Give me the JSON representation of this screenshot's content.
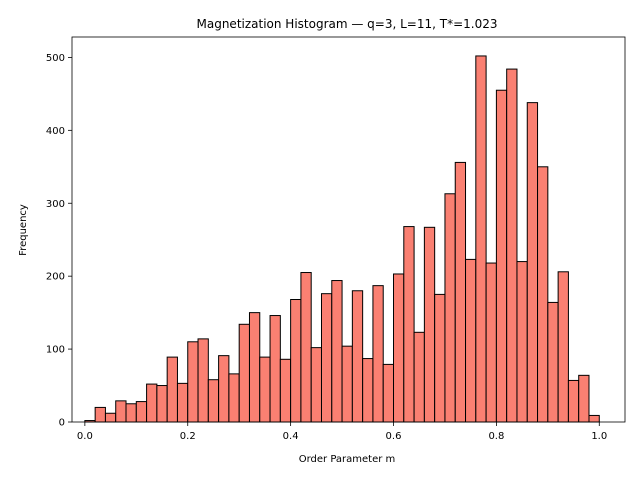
{
  "chart_data": {
    "type": "bar",
    "title": "Magnetization Histogram — q=3, L=11, T*=1.023",
    "xlabel": "Order Parameter m",
    "ylabel": "Frequency",
    "xlim": [
      -0.025,
      1.05
    ],
    "ylim": [
      0,
      528
    ],
    "x_ticks": [
      0.0,
      0.2,
      0.4,
      0.6,
      0.8,
      1.0
    ],
    "x_tick_labels": [
      "0.0",
      "0.2",
      "0.4",
      "0.6",
      "0.8",
      "1.0"
    ],
    "y_ticks": [
      0,
      100,
      200,
      300,
      400,
      500
    ],
    "y_tick_labels": [
      "0",
      "100",
      "200",
      "300",
      "400",
      "500"
    ],
    "bin_width": 0.02,
    "bin_edges_start": 0.0,
    "bar_color": "#fa8072",
    "edge_color": "#000000",
    "grid": false,
    "values": [
      2,
      20,
      12,
      29,
      25,
      28,
      52,
      50,
      89,
      53,
      110,
      114,
      58,
      91,
      66,
      134,
      150,
      89,
      146,
      86,
      168,
      205,
      102,
      176,
      194,
      104,
      180,
      87,
      187,
      79,
      203,
      268,
      123,
      267,
      175,
      313,
      356,
      223,
      502,
      218,
      455,
      484,
      220,
      438,
      350,
      164,
      206,
      57,
      64,
      9
    ]
  }
}
